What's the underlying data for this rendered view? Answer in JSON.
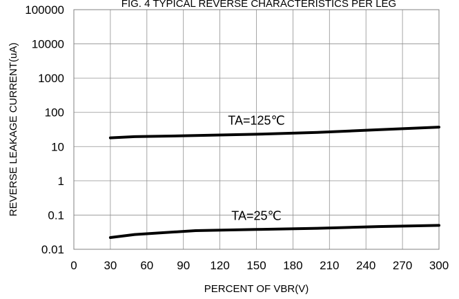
{
  "chart_data": {
    "type": "line",
    "title": "FIG. 4 TYPICAL REVERSE CHARACTERISTICS PER LEG",
    "xlabel": "PERCENT OF VBR(V)",
    "ylabel": "REVERSE LEAKAGE CURRENT(uA)",
    "xlim": [
      0,
      300
    ],
    "ylim": [
      0.01,
      100000
    ],
    "y_scale": "log",
    "grid": true,
    "x_ticks": [
      0,
      30,
      60,
      90,
      120,
      150,
      180,
      210,
      240,
      270,
      300
    ],
    "x_tick_labels": [
      "0",
      "30",
      "60",
      "90",
      "120",
      "150",
      "180",
      "210",
      "240",
      "270",
      "300"
    ],
    "y_ticks": [
      0.01,
      0.1,
      1,
      10,
      100,
      1000,
      10000,
      100000
    ],
    "y_tick_labels": [
      "0.01",
      "0.1",
      "1",
      "10",
      "100",
      "1000",
      "10000",
      "100000"
    ],
    "series": [
      {
        "name": "TA=125℃",
        "x": [
          30,
          50,
          100,
          150,
          200,
          250,
          300
        ],
        "y": [
          18,
          19.5,
          21,
          23,
          26,
          31,
          37
        ]
      },
      {
        "name": "TA=25℃",
        "x": [
          30,
          50,
          100,
          150,
          200,
          250,
          300
        ],
        "y": [
          0.022,
          0.027,
          0.035,
          0.038,
          0.041,
          0.046,
          0.05
        ]
      }
    ]
  }
}
